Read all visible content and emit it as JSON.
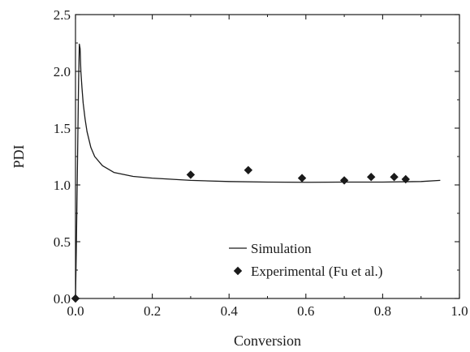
{
  "chart_data": {
    "type": "line",
    "xlabel": "Conversion",
    "ylabel": "PDI",
    "xlim": [
      0.0,
      1.0
    ],
    "ylim": [
      0.0,
      2.5
    ],
    "xticks": [
      "0.0",
      "0.2",
      "0.4",
      "0.6",
      "0.8",
      "1.0"
    ],
    "yticks": [
      "0.0",
      "0.5",
      "1.0",
      "1.5",
      "2.0",
      "2.5"
    ],
    "grid": false,
    "legend_position": "bottom-right",
    "series": [
      {
        "name": "Simulation",
        "style": "line",
        "color": "#1a1a1a",
        "x": [
          0.0,
          0.002,
          0.004,
          0.006,
          0.008,
          0.01,
          0.012,
          0.014,
          0.017,
          0.02,
          0.025,
          0.03,
          0.04,
          0.05,
          0.07,
          0.1,
          0.15,
          0.2,
          0.3,
          0.4,
          0.5,
          0.6,
          0.7,
          0.8,
          0.9,
          0.95
        ],
        "y": [
          0.0,
          0.4,
          0.9,
          1.4,
          1.9,
          2.24,
          2.2,
          2.0,
          1.85,
          1.72,
          1.58,
          1.47,
          1.33,
          1.25,
          1.17,
          1.11,
          1.075,
          1.06,
          1.04,
          1.03,
          1.025,
          1.023,
          1.025,
          1.025,
          1.03,
          1.04
        ]
      },
      {
        "name": "Experimental (Fu et al.)",
        "style": "marker",
        "marker": "diamond",
        "color": "#1a1a1a",
        "x": [
          0.0,
          0.3,
          0.45,
          0.59,
          0.7,
          0.77,
          0.83,
          0.86
        ],
        "y": [
          0.0,
          1.09,
          1.13,
          1.06,
          1.04,
          1.07,
          1.07,
          1.05
        ]
      }
    ]
  }
}
